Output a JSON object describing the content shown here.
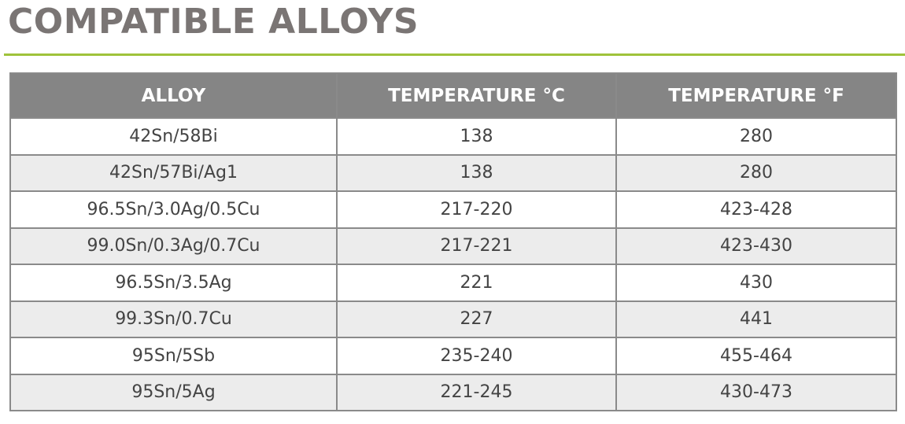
{
  "header": {
    "title": "COMPATIBLE ALLOYS"
  },
  "table": {
    "columns": [
      "ALLOY",
      "TEMPERATURE °C",
      "TEMPERATURE °F"
    ],
    "rows": [
      [
        "42Sn/58Bi",
        "138",
        "280"
      ],
      [
        "42Sn/57Bi/Ag1",
        "138",
        "280"
      ],
      [
        "96.5Sn/3.0Ag/0.5Cu",
        "217-220",
        "423-428"
      ],
      [
        "99.0Sn/0.3Ag/0.7Cu",
        "217-221",
        "423-430"
      ],
      [
        "96.5Sn/3.5Ag",
        "221",
        "430"
      ],
      [
        "99.3Sn/0.7Cu",
        "227",
        "441"
      ],
      [
        "95Sn/5Sb",
        "235-240",
        "455-464"
      ],
      [
        "95Sn/5Ag",
        "221-245",
        "430-473"
      ]
    ]
  }
}
